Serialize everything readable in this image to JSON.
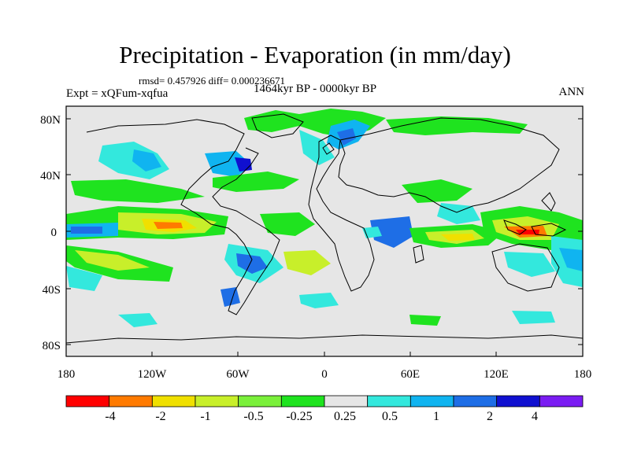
{
  "title": "Precipitation - Evaporation (in mm/day)",
  "stats": {
    "text": "rmsd= 0.457926 diff= 0.000236671"
  },
  "period": "1464kyr BP - 0000kyr BP",
  "experiment": "Expt = xQFum-xqfua",
  "season": "ANN",
  "axes": {
    "lat_labels": [
      "80N",
      "40N",
      "0",
      "40S",
      "80S"
    ],
    "lon_labels": [
      "180",
      "120W",
      "60W",
      "0",
      "60E",
      "120E",
      "180"
    ]
  },
  "colorbar": {
    "labels": [
      "-4",
      "-2",
      "-1",
      "-0.5",
      "-0.25",
      "0.25",
      "0.5",
      "1",
      "2",
      "4"
    ],
    "colors": [
      "#ff0000",
      "#ff7a00",
      "#f0e000",
      "#c8ef2a",
      "#7af03a",
      "#1fe31f",
      "#e6e6e6",
      "#33e8dd",
      "#10b4f0",
      "#1e6ee6",
      "#1010d0",
      "#7a1cf2"
    ]
  },
  "palette": {
    "ocean_neutral": "#e6e6e6",
    "coast": "#000000"
  }
}
